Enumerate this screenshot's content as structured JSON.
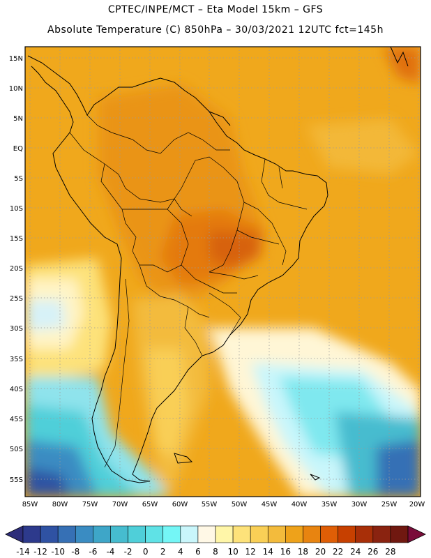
{
  "header": {
    "line1": "CPTEC/INPE/MCT –   Eta Model 15km – GFS",
    "line2": "Absolute Temperature (C) 850hPa – 30/03/2021 12UTC fct=145h"
  },
  "map": {
    "lat_labels": [
      "15N",
      "10N",
      "5N",
      "EQ",
      "5S",
      "10S",
      "15S",
      "20S",
      "25S",
      "30S",
      "35S",
      "40S",
      "45S",
      "50S",
      "55S"
    ],
    "lon_labels": [
      "85W",
      "80W",
      "75W",
      "70W",
      "65W",
      "60W",
      "55W",
      "50W",
      "45W",
      "40W",
      "35W",
      "30W",
      "25W",
      "20W"
    ]
  },
  "colorbar": {
    "colors": [
      "#2d3a8c",
      "#2f52a3",
      "#3670b5",
      "#3a8cc2",
      "#3ea6c8",
      "#46bccf",
      "#4fcfd9",
      "#5fe2e6",
      "#74f6f6",
      "#c9f6fb",
      "#fff8e6",
      "#fff6a8",
      "#fde27a",
      "#f9cf56",
      "#f3bb3c",
      "#eea21a",
      "#e88410",
      "#df5e06",
      "#c74000",
      "#a82f08",
      "#8a2310",
      "#701810"
    ],
    "labels": [
      "-14",
      "-12",
      "-10",
      "-8",
      "-6",
      "-4",
      "-2",
      "0",
      "2",
      "4",
      "6",
      "8",
      "10",
      "12",
      "14",
      "16",
      "18",
      "20",
      "22",
      "24",
      "26",
      "28"
    ],
    "under_color": "#2d2d7a",
    "over_color": "#7a0c3a"
  }
}
